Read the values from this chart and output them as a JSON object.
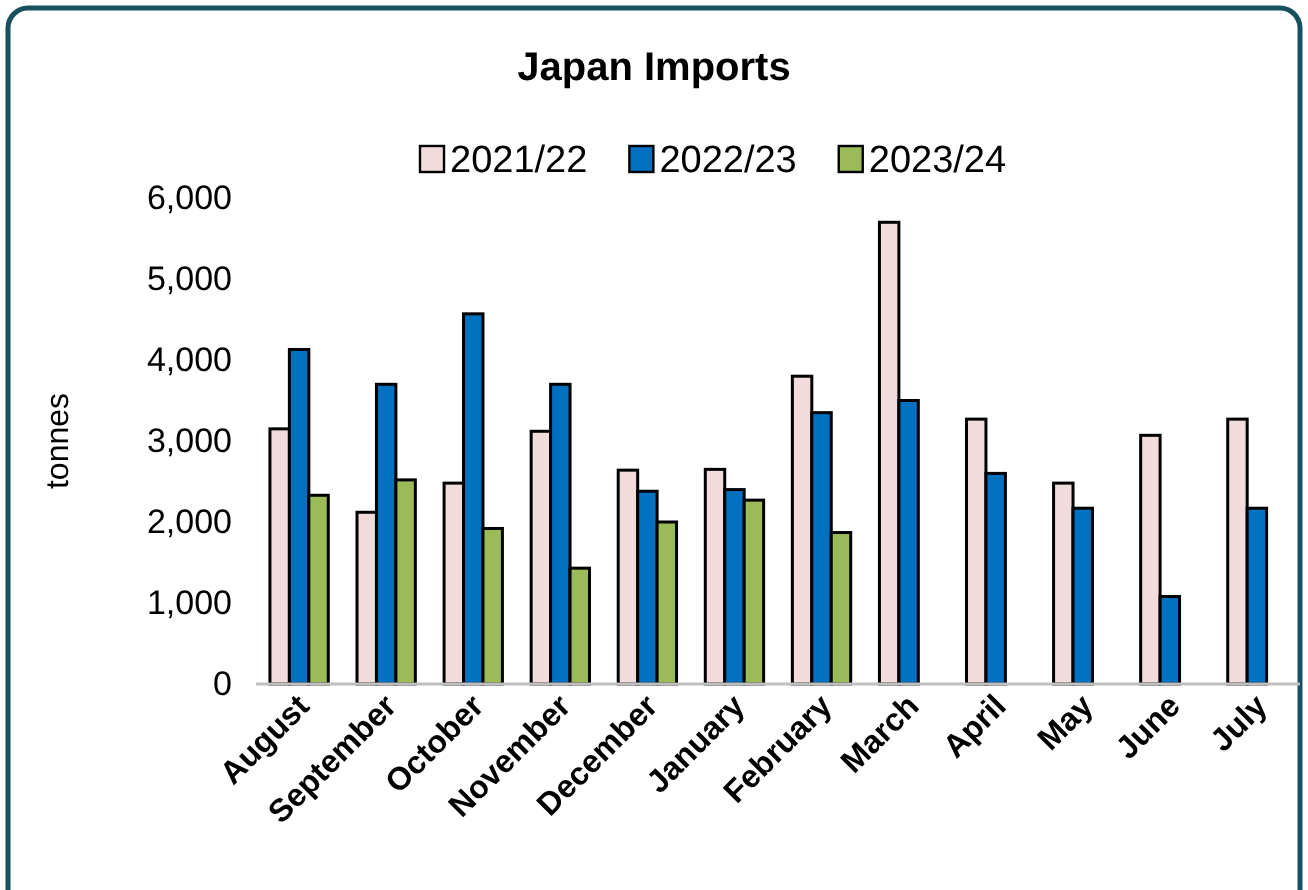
{
  "chart_data": {
    "type": "bar",
    "title": "Japan Imports",
    "ylabel": "tonnes",
    "categories": [
      "August",
      "September",
      "October",
      "November",
      "December",
      "January",
      "February",
      "March",
      "April",
      "May",
      "June",
      "July"
    ],
    "series": [
      {
        "name": "2021/22",
        "color": "#f2dcdb",
        "values": [
          3150,
          2120,
          2480,
          3120,
          2640,
          2650,
          3800,
          5700,
          3270,
          2480,
          3070,
          3270
        ]
      },
      {
        "name": "2022/23",
        "color": "#0070c0",
        "values": [
          4130,
          3700,
          4570,
          3700,
          2380,
          2400,
          3350,
          3500,
          2600,
          2170,
          1080,
          2170
        ]
      },
      {
        "name": "2023/24",
        "color": "#9bbb59",
        "values": [
          2330,
          2520,
          1920,
          1430,
          2000,
          2270,
          1870,
          null,
          null,
          null,
          null,
          null
        ]
      }
    ],
    "ylim": [
      0,
      6000
    ],
    "yticks": [
      {
        "value": 0,
        "label": "0"
      },
      {
        "value": 1000,
        "label": "1,000"
      },
      {
        "value": 2000,
        "label": "2,000"
      },
      {
        "value": 3000,
        "label": "3,000"
      },
      {
        "value": 4000,
        "label": "4,000"
      },
      {
        "value": 5000,
        "label": "5,000"
      },
      {
        "value": 6000,
        "label": "6,000"
      }
    ],
    "grid": false,
    "legend": "top"
  }
}
